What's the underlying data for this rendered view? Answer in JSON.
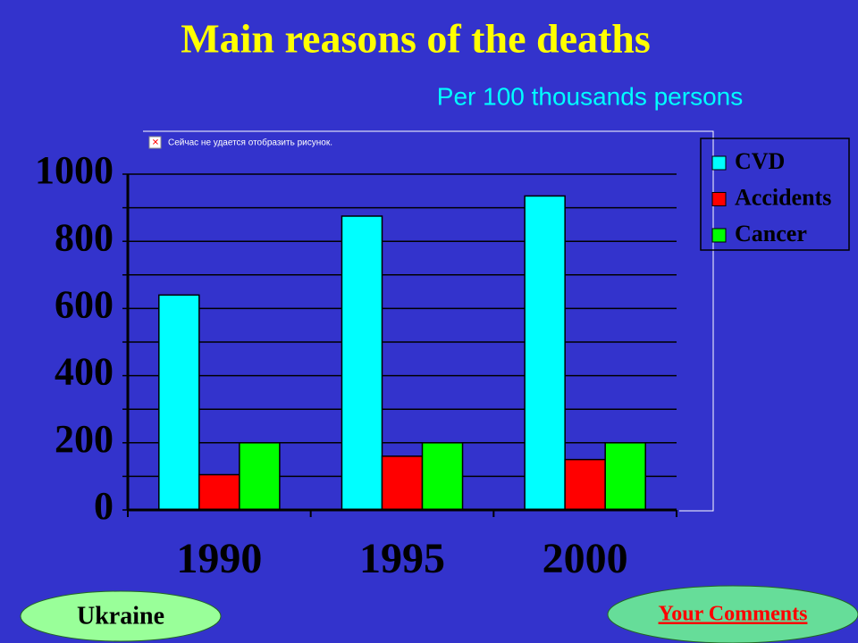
{
  "chart_data": {
    "type": "bar",
    "title": "Main reasons of the deaths",
    "subtitle": "Per 100 thousands persons",
    "categories": [
      "1990",
      "1995",
      "2000"
    ],
    "series": [
      {
        "name": "CVD",
        "color": "#00ffff",
        "values": [
          640,
          875,
          935
        ]
      },
      {
        "name": "Accidents",
        "color": "#ff0000",
        "values": [
          105,
          160,
          150
        ]
      },
      {
        "name": "Cancer",
        "color": "#00ff00",
        "values": [
          200,
          200,
          200
        ]
      }
    ],
    "ylim": [
      0,
      1000
    ],
    "yticks": [
      0,
      200,
      400,
      600,
      800,
      1000
    ],
    "grid": true,
    "legend": "top-right"
  },
  "image_placeholder": "Сейчас не удается отобразить рисунок.",
  "footer": {
    "left_button": "Ukraine",
    "right_link": "Your Comments"
  }
}
